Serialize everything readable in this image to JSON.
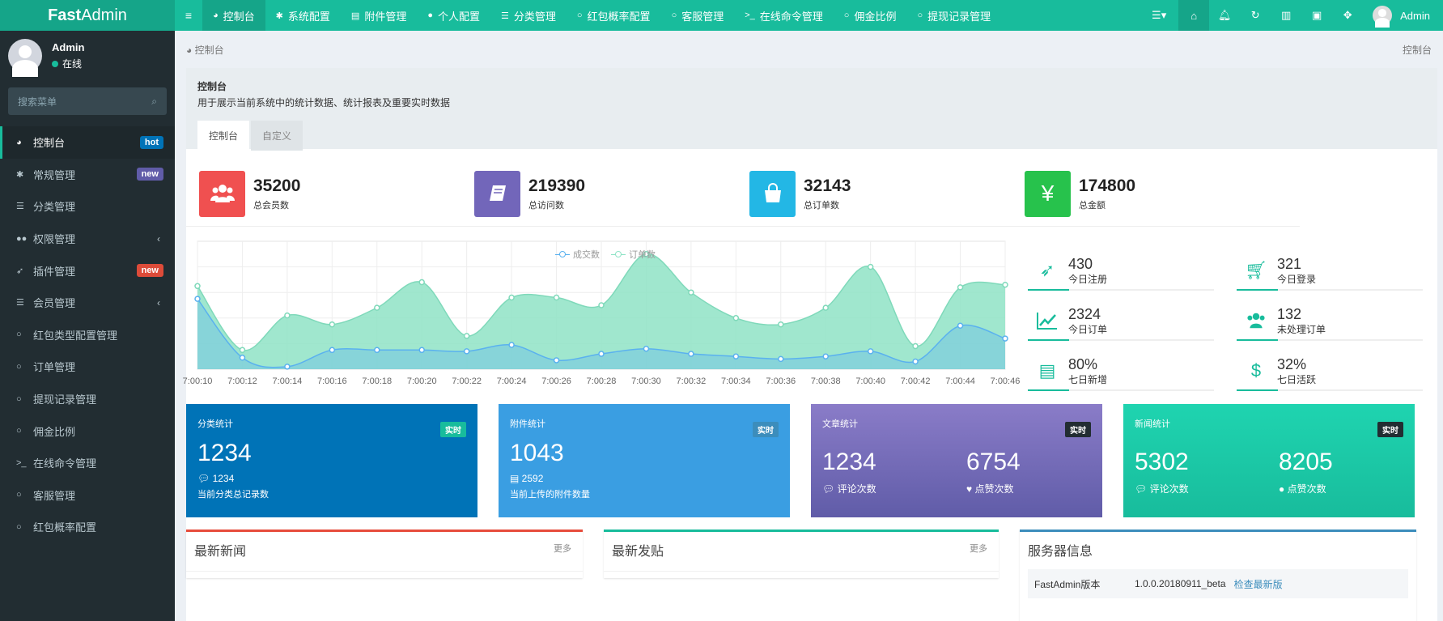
{
  "header": {
    "logo_bold": "Fast",
    "logo_rest": "Admin",
    "nav": [
      {
        "icon": "dashboard",
        "label": "控制台"
      },
      {
        "icon": "gear",
        "label": "系统配置"
      },
      {
        "icon": "file",
        "label": "附件管理"
      },
      {
        "icon": "user",
        "label": "个人配置"
      },
      {
        "icon": "list",
        "label": "分类管理"
      },
      {
        "icon": "circle",
        "label": "红包概率配置"
      },
      {
        "icon": "circle",
        "label": "客服管理"
      },
      {
        "icon": "terminal",
        "label": "在线命令管理"
      },
      {
        "icon": "circle",
        "label": "佣金比例"
      },
      {
        "icon": "circle",
        "label": "提现记录管理"
      }
    ],
    "user_name": "Admin"
  },
  "sidebar": {
    "user_name": "Admin",
    "status": "在线",
    "search_placeholder": "搜索菜单",
    "items": [
      {
        "label": "控制台",
        "badge": "hot"
      },
      {
        "label": "常规管理",
        "badge": "new"
      },
      {
        "label": "分类管理"
      },
      {
        "label": "权限管理",
        "arrow": "‹"
      },
      {
        "label": "插件管理",
        "badge": "new"
      },
      {
        "label": "会员管理",
        "arrow": "‹"
      },
      {
        "label": "红包类型配置管理"
      },
      {
        "label": "订单管理"
      },
      {
        "label": "提现记录管理"
      },
      {
        "label": "佣金比例"
      },
      {
        "label": "在线命令管理"
      },
      {
        "label": "客服管理"
      },
      {
        "label": "红包概率配置"
      }
    ]
  },
  "breadcrumb": {
    "left": "控制台",
    "right": "控制台"
  },
  "panel": {
    "title": "控制台",
    "desc": "用于展示当前系统中的统计数据、统计报表及重要实时数据",
    "tabs": [
      "控制台",
      "自定义"
    ]
  },
  "stats": [
    {
      "value": "35200",
      "label": "总会员数",
      "color": "#f05050"
    },
    {
      "value": "219390",
      "label": "总访问数",
      "color": "#7266ba"
    },
    {
      "value": "32143",
      "label": "总订单数",
      "color": "#23b7e5"
    },
    {
      "value": "174800",
      "label": "总金额",
      "color": "#27c24c"
    }
  ],
  "chart_data": {
    "type": "area",
    "legend": [
      "成交数",
      "订单数"
    ],
    "x": [
      "7:00:10",
      "7:00:12",
      "7:00:14",
      "7:00:16",
      "7:00:18",
      "7:00:20",
      "7:00:22",
      "7:00:24",
      "7:00:26",
      "7:00:28",
      "7:00:30",
      "7:00:32",
      "7:00:34",
      "7:00:36",
      "7:00:38",
      "7:00:40",
      "7:00:42",
      "7:00:44",
      "7:00:46"
    ],
    "series": [
      {
        "name": "成交数",
        "color": "#5ab1ef",
        "values": [
          55,
          9,
          2,
          15,
          15,
          15,
          14,
          19,
          7,
          12,
          16,
          12,
          10,
          8,
          10,
          14,
          6,
          34,
          24
        ]
      },
      {
        "name": "订单数",
        "color": "#8fe3c6",
        "values": [
          65,
          15,
          42,
          35,
          48,
          68,
          26,
          56,
          56,
          50,
          90,
          60,
          40,
          35,
          48,
          80,
          18,
          64,
          66
        ]
      }
    ],
    "ylim": [
      0,
      100
    ],
    "grid": true,
    "legend_position": "top-center"
  },
  "mini_stats": [
    {
      "value": "430",
      "label": "今日注册",
      "icon": "rocket",
      "progress": 0.22
    },
    {
      "value": "321",
      "label": "今日登录",
      "icon": "cart",
      "progress": 0.22
    },
    {
      "value": "2324",
      "label": "今日订单",
      "icon": "line-chart",
      "progress": 0.22
    },
    {
      "value": "132",
      "label": "未处理订单",
      "icon": "users",
      "progress": 0.22
    },
    {
      "value": "80%",
      "label": "七日新增",
      "icon": "list",
      "progress": 0.22
    },
    {
      "value": "32%",
      "label": "七日活跃",
      "icon": "dollar",
      "progress": 0.22
    }
  ],
  "cards": [
    {
      "title": "分类统计",
      "tag": "实时",
      "value": "1234",
      "sub_value": "1234",
      "desc": "当前分类总记录数",
      "bg": "#0073b7",
      "tag_bg": "#18bc9c"
    },
    {
      "title": "附件统计",
      "tag": "实时",
      "value": "1043",
      "sub_value": "2592",
      "desc": "当前上传的附件数量",
      "bg": "#3a9ee2",
      "tag_bg": "#3c8dbc"
    },
    {
      "title": "文章统计",
      "tag": "实时",
      "left_value": "1234",
      "left_label": "评论次数",
      "right_value": "6754",
      "right_label": "点赞次数",
      "bg": "#605ca8",
      "tag_bg": "#222d32"
    },
    {
      "title": "新闻统计",
      "tag": "实时",
      "left_value": "5302",
      "left_label": "评论次数",
      "right_value": "8205",
      "right_label": "点赞次数",
      "bg": "#18bc9c",
      "tag_bg": "#222d32"
    }
  ],
  "boxes": [
    {
      "title": "最新新闻",
      "more": "更多",
      "color": "#e74c3c"
    },
    {
      "title": "最新发贴",
      "more": "更多",
      "color": "#18bc9c"
    },
    {
      "title": "服务器信息",
      "color": "#3c8dbc",
      "row_key": "FastAdmin版本",
      "row_value": "1.0.0.20180911_beta",
      "row_link": "检查最新版"
    }
  ]
}
